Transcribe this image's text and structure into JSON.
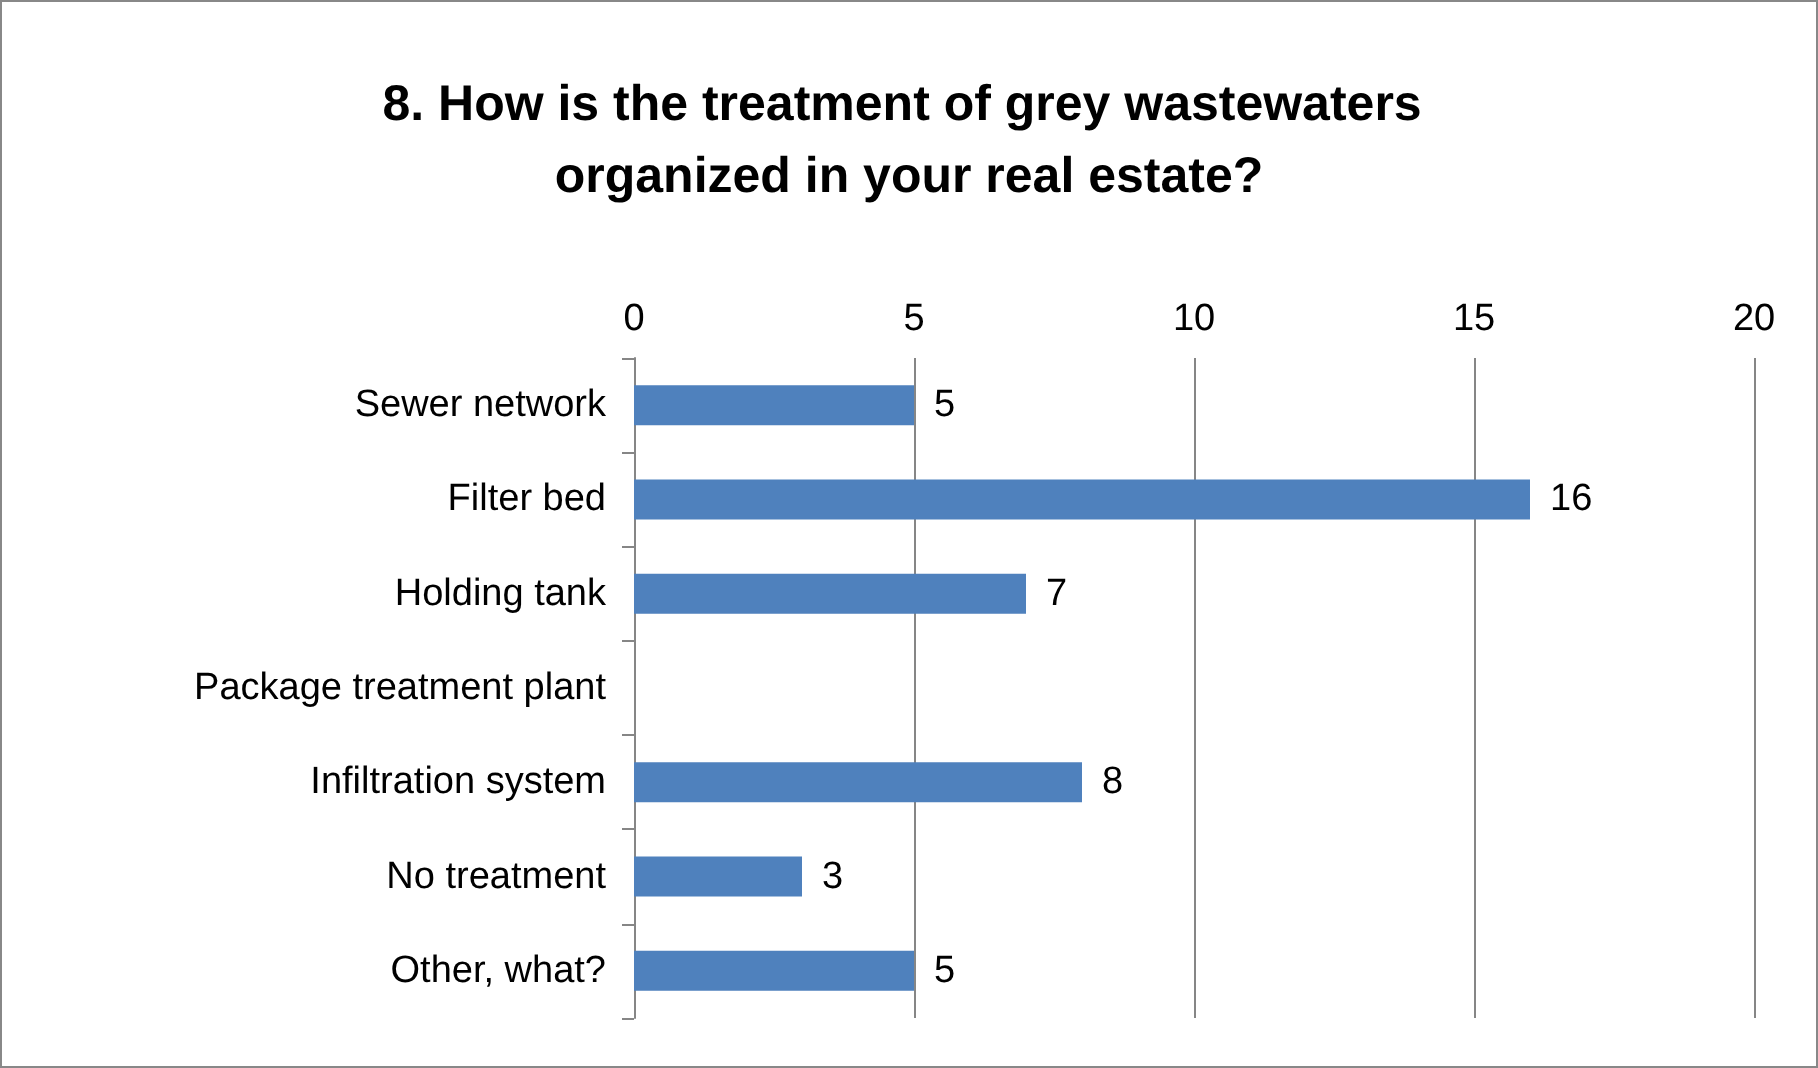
{
  "chart_data": {
    "type": "bar",
    "orientation": "horizontal",
    "title": "8. How is the treatment of grey wastewaters organized in your real estate?",
    "categories": [
      "Sewer network",
      "Filter bed",
      "Holding tank",
      "Package treatment plant",
      "Infiltration system",
      "No treatment",
      "Other, what?"
    ],
    "values": [
      5,
      16,
      7,
      0,
      8,
      3,
      5
    ],
    "value_labels": [
      "5",
      "16",
      "7",
      null,
      "8",
      "3",
      "5"
    ],
    "color": "#4f81bd",
    "xlim": [
      0,
      20
    ],
    "xticks": [
      0,
      5,
      10,
      15,
      20
    ],
    "grid": "x"
  }
}
